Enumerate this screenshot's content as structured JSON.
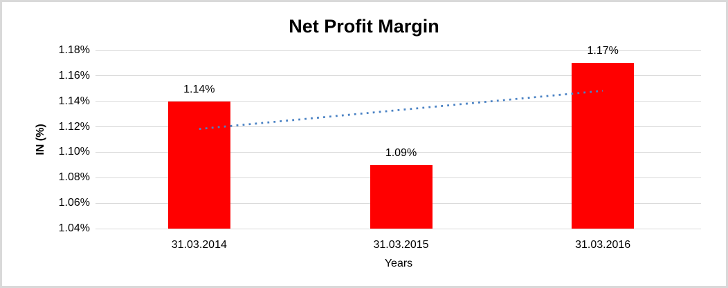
{
  "window": {
    "background": "#FFFFFF",
    "border_color": "#D9D9D9"
  },
  "chart_data": {
    "type": "bar",
    "title": "Net Profit Margin",
    "categories": [
      "31.03.2014",
      "31.03.2015",
      "31.03.2016"
    ],
    "values": [
      1.14,
      1.09,
      1.17
    ],
    "value_labels": [
      "1.14%",
      "1.09%",
      "1.17%"
    ],
    "xlabel": "Years",
    "ylabel": "IN (%)",
    "ylim": [
      1.04,
      1.18
    ],
    "ytick_step": 0.02,
    "yticks": [
      {
        "value": 1.18,
        "label": "1.18%"
      },
      {
        "value": 1.16,
        "label": "1.16%"
      },
      {
        "value": 1.14,
        "label": "1.14%"
      },
      {
        "value": 1.12,
        "label": "1.12%"
      },
      {
        "value": 1.1,
        "label": "1.10%"
      },
      {
        "value": 1.08,
        "label": "1.08%"
      },
      {
        "value": 1.06,
        "label": "1.06%"
      },
      {
        "value": 1.04,
        "label": "1.04%"
      }
    ],
    "grid": true,
    "legend": "none",
    "bar_color": "#FF0000",
    "gridline_color": "#D9D9D9",
    "text_color": "#000000",
    "trendline": {
      "type": "linear",
      "style": "dotted",
      "color": "#4A82C4",
      "start_value": 1.1183,
      "end_value": 1.1483
    }
  }
}
